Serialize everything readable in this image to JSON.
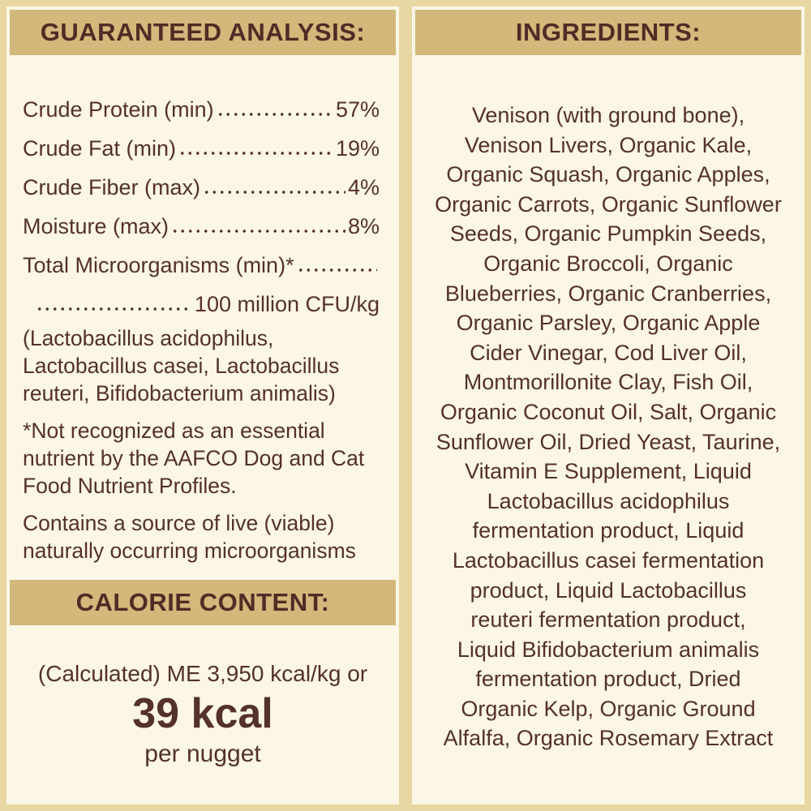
{
  "colors": {
    "bg": "#e8d7a2",
    "panel": "#fbf6e6",
    "band": "#d2b87b",
    "ink": "#543129"
  },
  "left": {
    "analysis": {
      "header": "GUARANTEED ANALYSIS:",
      "rows": [
        {
          "label": "Crude Protein (min)",
          "value": "57%"
        },
        {
          "label": "Crude Fat (min)",
          "value": "19%"
        },
        {
          "label": "Crude Fiber (max)",
          "value": "4%"
        },
        {
          "label": "Moisture (max)",
          "value": "8%"
        }
      ],
      "micro_label": "Total Microorganisms (min)*",
      "micro_value": "100 million CFU/kg",
      "species_note": [
        "(Lactobacillus acidophilus,",
        "Lactobacillus casei, Lactobacillus",
        "reuteri, Bifidobacterium animalis)"
      ],
      "footnote": [
        "*Not recognized as an essential",
        "nutrient by the AAFCO Dog and Cat",
        "Food Nutrient Profiles."
      ],
      "live_note": [
        "Contains a source of live (viable)",
        "naturally occurring microorganisms"
      ]
    },
    "calories": {
      "header": "CALORIE CONTENT:",
      "line1": "(Calculated) ME 3,950 kcal/kg or",
      "value": "39 kcal",
      "unit": "per nugget"
    }
  },
  "right": {
    "header": "INGREDIENTS:",
    "lines": [
      "Venison (with ground bone),",
      "Venison Livers, Organic Kale,",
      "Organic Squash, Organic Apples,",
      "Organic Carrots, Organic Sunflower",
      "Seeds, Organic Pumpkin Seeds,",
      "Organic Broccoli, Organic",
      "Blueberries, Organic Cranberries,",
      "Organic Parsley, Organic Apple",
      "Cider Vinegar, Cod Liver Oil,",
      "Montmorillonite Clay, Fish Oil,",
      "Organic Coconut Oil, Salt, Organic",
      "Sunflower Oil, Dried Yeast, Taurine,",
      "Vitamin E Supplement, Liquid",
      "Lactobacillus acidophilus",
      "fermentation product, Liquid",
      "Lactobacillus casei fermentation",
      "product, Liquid Lactobacillus",
      "reuteri fermentation product,",
      "Liquid Bifidobacterium animalis",
      "fermentation product, Dried",
      "Organic Kelp, Organic Ground",
      "Alfalfa, Organic Rosemary Extract"
    ]
  }
}
